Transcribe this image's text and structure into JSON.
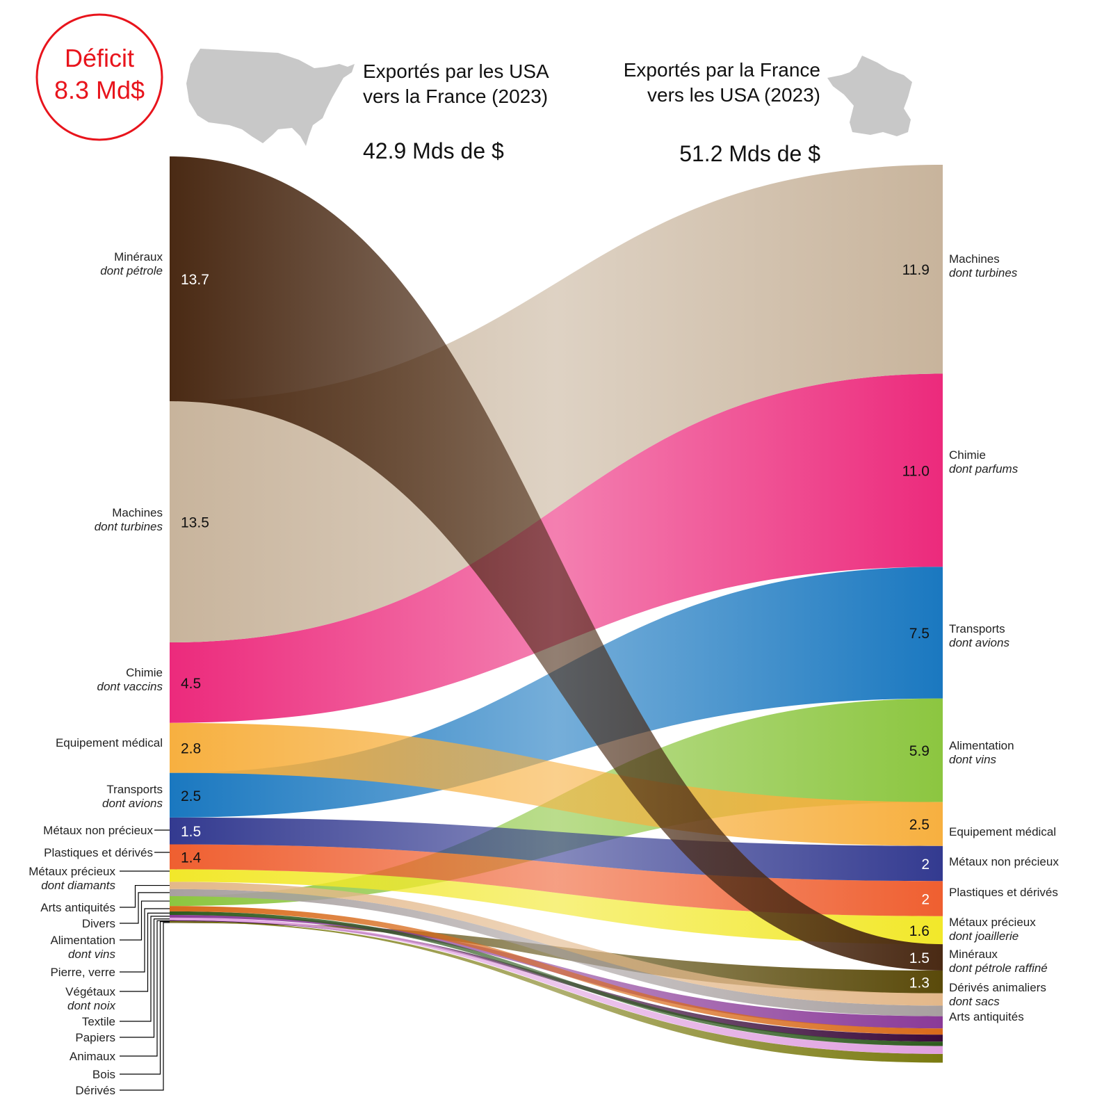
{
  "deficit": {
    "line1": "Déficit",
    "line2": "8.3 Md$",
    "color": "#e8141c"
  },
  "header_left": {
    "line1": "Exportés par les USA",
    "line2": "vers la France (2023)",
    "total": "42.9 Mds de $",
    "icon": "usa-map-icon"
  },
  "header_right": {
    "line1": "Exportés par la France",
    "line2": "vers les USA (2023)",
    "total": "51.2 Mds de $",
    "icon": "france-map-icon"
  },
  "chart_data": {
    "type": "sankey",
    "left_total": 42.9,
    "right_total": 51.2,
    "categories": [
      {
        "name": "Minéraux",
        "left_sub": "dont pétrole",
        "right_sub": "dont pétrole raffiné",
        "left": 13.7,
        "right": 1.5,
        "left_label": "13.7",
        "right_label": "1.5",
        "color": "#4a2a14"
      },
      {
        "name": "Machines",
        "left_sub": "dont turbines",
        "right_sub": "dont turbines",
        "left": 13.5,
        "right": 11.9,
        "left_label": "13.5",
        "right_label": "11.9",
        "color": "#c8b49c"
      },
      {
        "name": "Chimie",
        "left_sub": "dont vaccins",
        "right_sub": "dont parfums",
        "left": 4.5,
        "right": 11.0,
        "left_label": "4.5",
        "right_label": "11.0",
        "color": "#ec2a7c"
      },
      {
        "name": "Equipement médical",
        "left_sub": "",
        "right_sub": "",
        "left": 2.8,
        "right": 2.5,
        "left_label": "2.8",
        "right_label": "2.5",
        "color": "#f7b040"
      },
      {
        "name": "Transports",
        "left_sub": "dont avions",
        "right_sub": "dont avions",
        "left": 2.5,
        "right": 7.5,
        "left_label": "2.5",
        "right_label": "7.5",
        "color": "#1a78c0"
      },
      {
        "name": "Métaux non précieux",
        "left_sub": "",
        "right_sub": "",
        "left": 1.5,
        "right": 2,
        "left_label": "1.5",
        "right_label": "2",
        "color": "#333a90"
      },
      {
        "name": "Plastiques et dérivés",
        "left_sub": "",
        "right_sub": "",
        "left": 1.4,
        "right": 2,
        "left_label": "1.4",
        "right_label": "2",
        "color": "#ef5f30"
      },
      {
        "name": "Métaux précieux",
        "left_sub": "dont diamants",
        "right_sub": "dont joaillerie",
        "left": 0.7,
        "right": 1.6,
        "left_label": "",
        "right_label": "1.6",
        "color": "#f2e82a"
      },
      {
        "name": "Arts antiquités",
        "left_sub": "",
        "right_sub": "",
        "left": 0.4,
        "right": 0.7,
        "left_label": "",
        "right_label": "",
        "color": "#e3b88a"
      },
      {
        "name": "Divers",
        "left_sub": "",
        "right_sub": "",
        "left": 0.4,
        "right": 0.6,
        "left_label": "",
        "right_label": "",
        "color": "#a8a0a0"
      },
      {
        "name": "Alimentation",
        "left_sub": "dont vins",
        "right_sub": "dont vins",
        "left": 0.55,
        "right": 5.9,
        "left_label": "",
        "right_label": "5.9",
        "color": "#8cc640"
      },
      {
        "name": "Pierre, verre",
        "left_sub": "",
        "right_sub": "",
        "left": 0.3,
        "right": 0.35,
        "left_label": "",
        "right_label": "",
        "color": "#d86a1a"
      },
      {
        "name": "Végétaux",
        "left_sub": "dont noix",
        "right_sub": "",
        "left": 0.2,
        "right": 0.25,
        "left_label": "",
        "right_label": "",
        "color": "#2e5a1e"
      },
      {
        "name": "Textile",
        "left_sub": "",
        "right_sub": "",
        "left": 0.15,
        "right": 0.7,
        "left_label": "",
        "right_label": "",
        "color": "#8a3a98"
      },
      {
        "name": "Papiers",
        "left_sub": "",
        "right_sub": "",
        "left": 0.15,
        "right": 0.45,
        "left_label": "",
        "right_label": "",
        "color": "#e0a0e0"
      },
      {
        "name": "Animaux",
        "left_sub": "",
        "right_sub": "",
        "left": 0.05,
        "right": 0.4,
        "left_label": "",
        "right_label": "",
        "color": "#3a0a3a"
      },
      {
        "name": "Bois",
        "left_sub": "",
        "right_sub": "",
        "left": 0.05,
        "right": 0.5,
        "left_label": "",
        "right_label": "",
        "color": "#7a7a10"
      },
      {
        "name": "Dérivés animaliers",
        "left_name": "Dérivés",
        "left_sub": "",
        "right_sub": "dont sacs",
        "left": 0.05,
        "right": 1.3,
        "left_label": "",
        "right_label": "1.3",
        "color": "#5a4a0a"
      }
    ],
    "right_order": [
      "Machines",
      "Chimie",
      "Transports",
      "Alimentation",
      "Equipement médical",
      "Métaux non précieux",
      "Plastiques et dérivés",
      "Métaux précieux",
      "Minéraux",
      "Dérivés animaliers",
      "Arts antiquités",
      "Divers",
      "Textile",
      "Pierre, verre",
      "Animaux",
      "Végétaux",
      "Papiers",
      "Bois"
    ],
    "right_labeled": [
      "Machines",
      "Chimie",
      "Transports",
      "Alimentation",
      "Equipement médical",
      "Métaux non précieux",
      "Plastiques et dérivés",
      "Métaux précieux",
      "Minéraux",
      "Dérivés animaliers",
      "Arts antiquités"
    ]
  }
}
